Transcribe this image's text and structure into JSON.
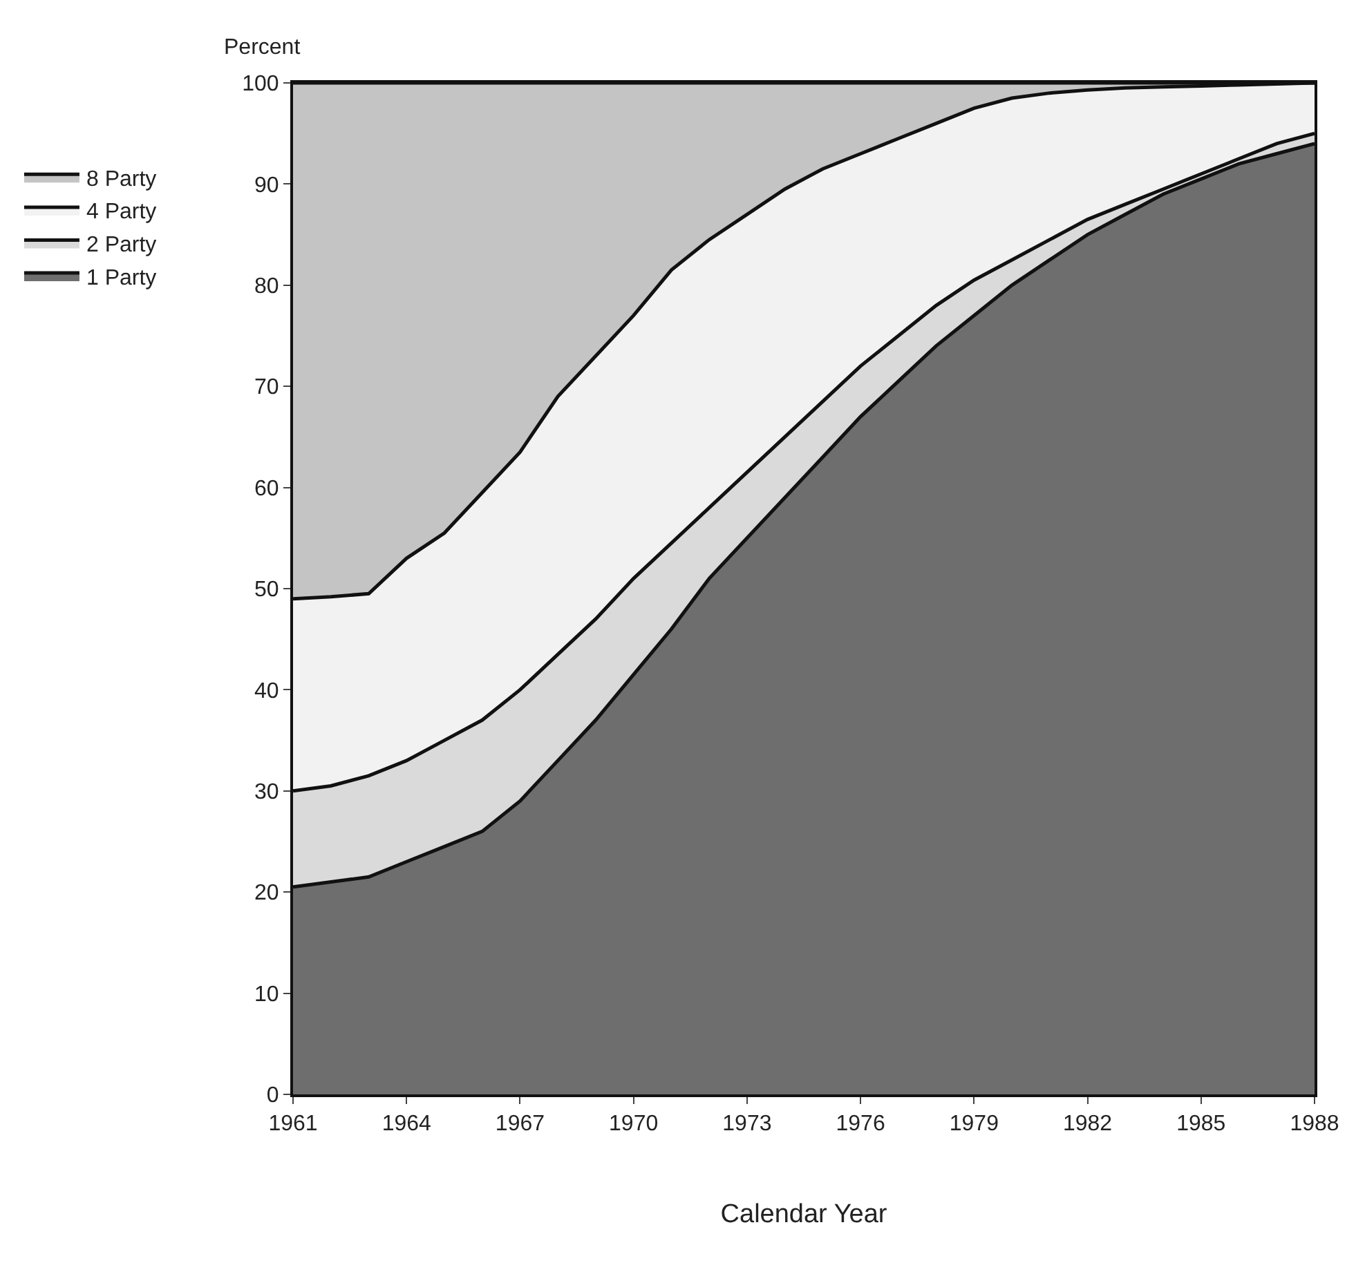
{
  "chart_data": {
    "type": "area",
    "stacked": true,
    "xlabel": "Calendar Year",
    "ylabel": "Percent",
    "x": [
      1961,
      1962,
      1963,
      1964,
      1965,
      1966,
      1967,
      1968,
      1969,
      1970,
      1971,
      1972,
      1973,
      1974,
      1975,
      1976,
      1977,
      1978,
      1979,
      1980,
      1981,
      1982,
      1983,
      1984,
      1985,
      1986,
      1987,
      1988
    ],
    "series": [
      {
        "name": "1 Party",
        "color": "#6e6e6e",
        "values": [
          20.5,
          21,
          21.5,
          23,
          24.5,
          26,
          29,
          33,
          37,
          41.5,
          46,
          51,
          55,
          59,
          63,
          67,
          70.5,
          74,
          77,
          80,
          82.5,
          85,
          87,
          89,
          90.5,
          92,
          93,
          94
        ]
      },
      {
        "name": "2 Party",
        "color": "#dadada",
        "values": [
          9.5,
          9.5,
          10,
          10,
          10.5,
          11,
          11,
          10.5,
          10,
          9.5,
          8.5,
          7,
          6.5,
          6,
          5.5,
          5,
          4.5,
          4,
          3.5,
          2.5,
          2,
          1.5,
          1,
          0.5,
          0.5,
          0.5,
          1,
          1
        ]
      },
      {
        "name": "4 Party",
        "color": "#f2f2f2",
        "values": [
          19,
          18.7,
          18,
          20,
          20.5,
          22.5,
          23.5,
          25.5,
          26,
          26,
          27,
          26.5,
          25.5,
          24.5,
          23,
          21,
          19.5,
          18,
          17,
          16,
          14.5,
          12.8,
          11.5,
          10.1,
          8.7,
          7.3,
          5.9,
          5
        ]
      },
      {
        "name": "8 Party",
        "color": "#c4c4c4",
        "values": [
          51,
          50.8,
          50.5,
          47,
          44.5,
          40.5,
          36.5,
          31,
          27,
          23,
          18.5,
          15.5,
          13,
          10.5,
          8.5,
          7,
          5.5,
          4,
          2.5,
          1.5,
          1,
          0.7,
          0.5,
          0.4,
          0.3,
          0.2,
          0.1,
          0
        ]
      }
    ],
    "xlim": [
      1961,
      1988
    ],
    "xticks": [
      1961,
      1964,
      1967,
      1970,
      1973,
      1976,
      1979,
      1982,
      1985,
      1988
    ],
    "ylim": [
      0,
      100
    ],
    "yticks": [
      0,
      10,
      20,
      30,
      40,
      50,
      60,
      70,
      80,
      90,
      100
    ],
    "legend": "left"
  }
}
